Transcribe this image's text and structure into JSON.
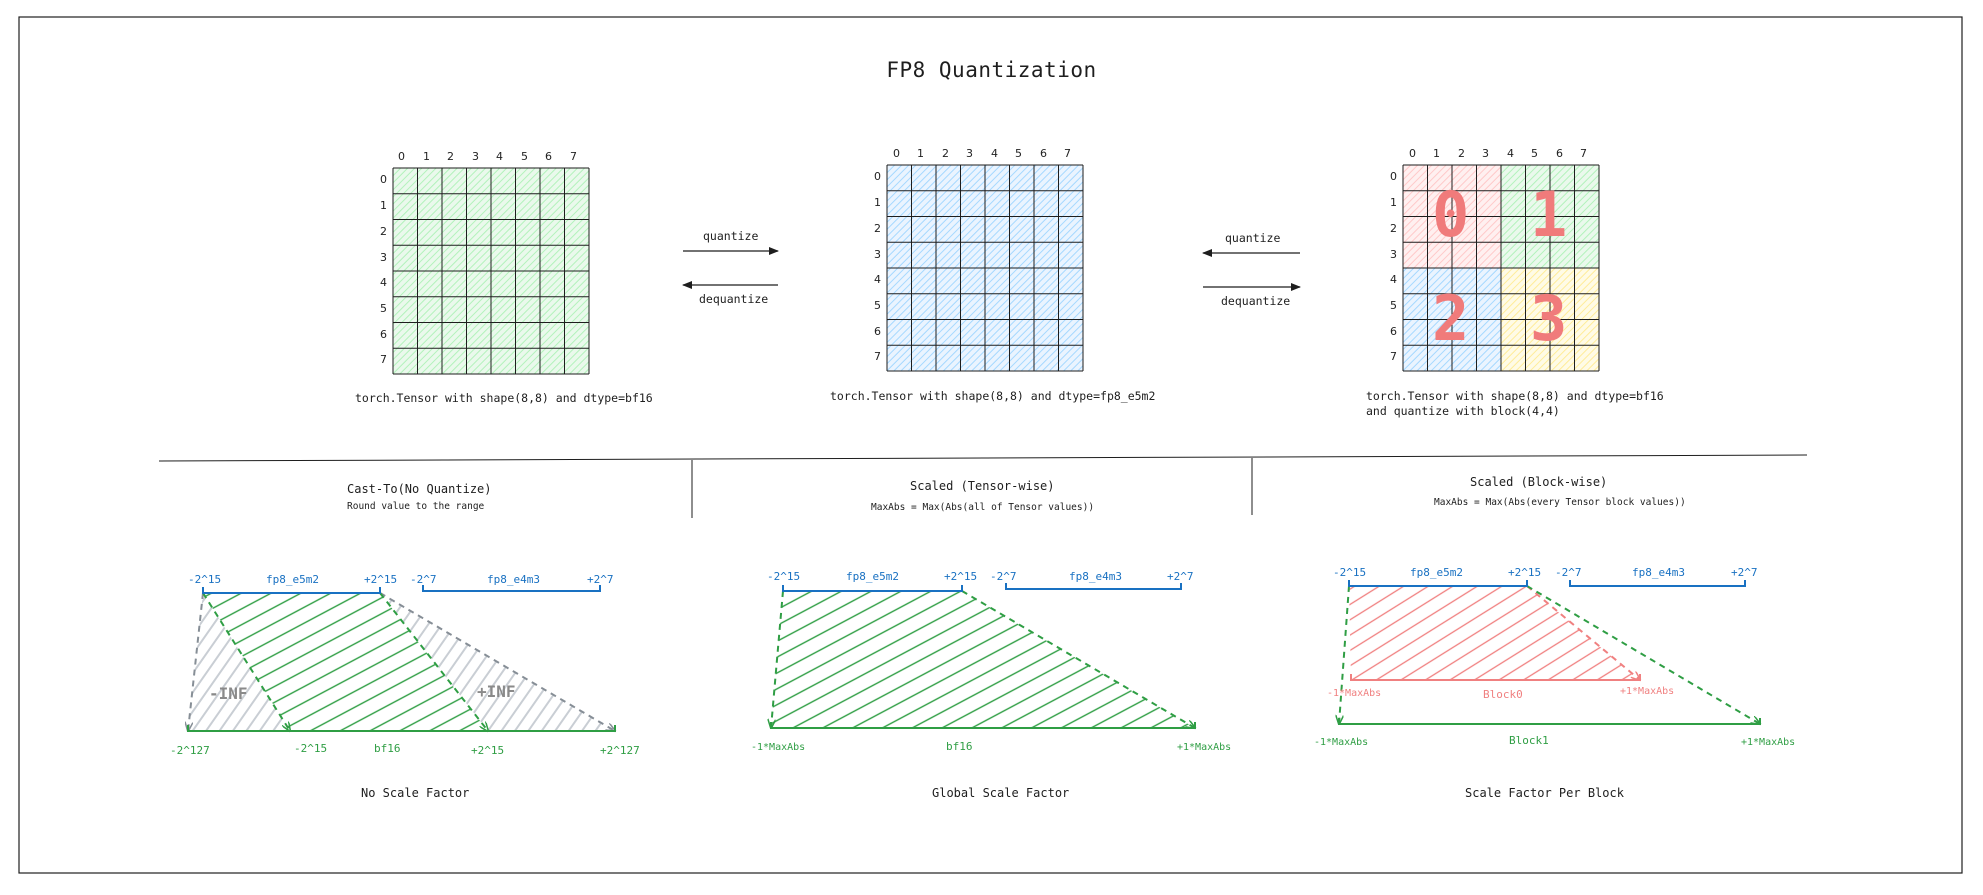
{
  "title": "FP8 Quantization",
  "colors": {
    "grid_green": "#b2f2bb",
    "grid_blue": "#a5d8ff",
    "block_red": "#ffc9c9",
    "block_green": "#b2f2bb",
    "block_blue": "#a5d8ff",
    "block_yellow": "#ffec99",
    "range_blue": "#1971c2",
    "range_green": "#2f9e44",
    "overflow_gray": "#868e96",
    "block_number": "#f07b7b"
  },
  "matrices": [
    {
      "caption": [
        "torch.Tensor with shape(8,8) and dtype=bf16"
      ],
      "fill": "green",
      "col_labels": [
        "0",
        "1",
        "2",
        "3",
        "4",
        "5",
        "6",
        "7"
      ],
      "row_labels": [
        "0",
        "1",
        "2",
        "3",
        "4",
        "5",
        "6",
        "7"
      ]
    },
    {
      "caption": [
        "torch.Tensor with shape(8,8) and dtype=fp8_e5m2"
      ],
      "fill": "blue",
      "col_labels": [
        "0",
        "1",
        "2",
        "3",
        "4",
        "5",
        "6",
        "7"
      ],
      "row_labels": [
        "0",
        "1",
        "2",
        "3",
        "4",
        "5",
        "6",
        "7"
      ]
    },
    {
      "caption": [
        "torch.Tensor with shape(8,8) and dtype=bf16",
        "and quantize with block(4,4)"
      ],
      "fill": "blocks",
      "col_labels": [
        "0",
        "1",
        "2",
        "3",
        "4",
        "5",
        "6",
        "7"
      ],
      "row_labels": [
        "0",
        "1",
        "2",
        "3",
        "4",
        "5",
        "6",
        "7"
      ],
      "block_labels": [
        "0",
        "1",
        "2",
        "3"
      ]
    }
  ],
  "arrows": {
    "left": {
      "top": "quantize",
      "bottom": "dequantize"
    },
    "right": {
      "top": "quantize",
      "bottom": "dequantize"
    }
  },
  "sections": [
    {
      "heading": "Cast-To(No Quantize)",
      "subheading": "Round value to the range",
      "footer": "No Scale Factor",
      "fp8_e5m2": {
        "label": "fp8_e5m2",
        "min": "-2^15",
        "max": "+2^15"
      },
      "fp8_e4m3": {
        "label": "fp8_e4m3",
        "min": "-2^7",
        "max": "+2^7"
      },
      "bf16": {
        "label": "bf16",
        "min": "-2^127",
        "inner_min": "-2^15",
        "inner_max": "+2^15",
        "max": "+2^127"
      },
      "neg_overflow": "-INF",
      "pos_overflow": "+INF"
    },
    {
      "heading": "Scaled (Tensor-wise)",
      "subheading": "MaxAbs = Max(Abs(all of Tensor values))",
      "footer": "Global Scale Factor",
      "fp8_e5m2": {
        "label": "fp8_e5m2",
        "min": "-2^15",
        "max": "+2^15"
      },
      "fp8_e4m3": {
        "label": "fp8_e4m3",
        "min": "-2^7",
        "max": "+2^7"
      },
      "bf16": {
        "label": "bf16",
        "min": "-1*MaxAbs",
        "max": "+1*MaxAbs"
      }
    },
    {
      "heading": "Scaled (Block-wise)",
      "subheading": "MaxAbs = Max(Abs(every Tensor block values))",
      "footer": "Scale Factor Per Block",
      "fp8_e5m2": {
        "label": "fp8_e5m2",
        "min": "-2^15",
        "max": "+2^15"
      },
      "fp8_e4m3": {
        "label": "fp8_e4m3",
        "min": "-2^7",
        "max": "+2^7"
      },
      "block0": {
        "label": "Block0",
        "min": "-1*MaxAbs",
        "max": "+1*MaxAbs"
      },
      "block1": {
        "label": "Block1",
        "min": "-1*MaxAbs",
        "max": "+1*MaxAbs"
      }
    }
  ]
}
